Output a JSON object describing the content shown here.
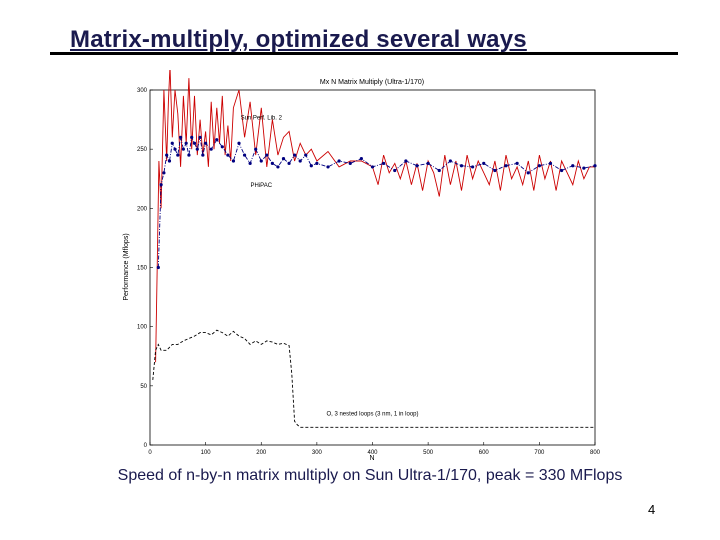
{
  "slide": {
    "title": "Matrix-multiply, optimized several ways",
    "caption": "Speed of n-by-n matrix multiply on Sun Ultra-1/170, peak = 330 MFlops",
    "page_number": "4"
  },
  "chart_data": {
    "type": "line",
    "title": "Mx N Matrix Multiply (Ultra-1/170)",
    "xlabel": "N",
    "ylabel": "Performance (Mflops)",
    "xlim": [
      0,
      800
    ],
    "ylim": [
      0,
      300
    ],
    "xticks": [
      "0",
      "100",
      "200",
      "300",
      "400",
      "500",
      "600",
      "700",
      "800"
    ],
    "yticks": [
      "0",
      "50",
      "100",
      "150",
      "200",
      "250",
      "300"
    ],
    "grid": false,
    "annotations": [
      {
        "text": "Sun Perf. Lib. 2",
        "x": 200,
        "y": 275
      },
      {
        "text": "PHiPAC",
        "x": 200,
        "y": 218
      },
      {
        "text": "O, 3 nested loops (3 nm, 1 in loop)",
        "x": 400,
        "y": 25
      }
    ],
    "series": [
      {
        "color": "#cc0000",
        "style": "solid",
        "x": [
          10,
          13,
          16,
          20,
          25,
          30,
          33,
          36,
          40,
          45,
          50,
          55,
          60,
          65,
          70,
          75,
          80,
          85,
          90,
          95,
          100,
          105,
          110,
          115,
          120,
          125,
          130,
          135,
          140,
          145,
          150,
          160,
          170,
          180,
          190,
          200,
          210,
          220,
          230,
          240,
          250,
          260,
          270,
          280,
          290,
          300,
          320,
          340,
          360,
          380,
          400,
          410,
          420,
          430,
          440,
          450,
          460,
          470,
          480,
          490,
          500,
          510,
          520,
          530,
          540,
          550,
          560,
          570,
          580,
          590,
          600,
          610,
          620,
          630,
          640,
          650,
          660,
          670,
          680,
          690,
          700,
          710,
          720,
          730,
          740,
          750,
          760,
          770,
          780,
          790,
          800
        ],
        "y": [
          70,
          150,
          240,
          200,
          300,
          240,
          290,
          320,
          260,
          300,
          280,
          235,
          295,
          255,
          310,
          250,
          295,
          245,
          275,
          245,
          265,
          235,
          290,
          250,
          285,
          255,
          295,
          245,
          270,
          240,
          285,
          300,
          260,
          290,
          245,
          285,
          235,
          275,
          245,
          260,
          265,
          240,
          255,
          245,
          250,
          240,
          248,
          235,
          240,
          240,
          235,
          220,
          245,
          230,
          238,
          225,
          240,
          220,
          238,
          215,
          240,
          230,
          210,
          245,
          220,
          240,
          215,
          245,
          225,
          240,
          230,
          220,
          240,
          215,
          245,
          225,
          235,
          220,
          240,
          215,
          245,
          225,
          240,
          215,
          240,
          230,
          220,
          240,
          225,
          235,
          235
        ]
      },
      {
        "color": "#000080",
        "style": "dashdot-marker",
        "x": [
          15,
          20,
          25,
          30,
          35,
          40,
          45,
          50,
          55,
          60,
          65,
          70,
          75,
          80,
          85,
          90,
          95,
          100,
          110,
          120,
          130,
          140,
          150,
          160,
          170,
          180,
          190,
          200,
          210,
          220,
          230,
          240,
          250,
          260,
          270,
          280,
          290,
          300,
          320,
          340,
          360,
          380,
          400,
          420,
          440,
          460,
          480,
          500,
          520,
          540,
          560,
          580,
          600,
          620,
          640,
          660,
          680,
          700,
          720,
          740,
          760,
          780,
          800
        ],
        "y": [
          150,
          220,
          230,
          245,
          240,
          255,
          250,
          245,
          260,
          250,
          255,
          245,
          260,
          255,
          250,
          260,
          245,
          255,
          250,
          258,
          252,
          245,
          240,
          255,
          245,
          238,
          250,
          240,
          245,
          238,
          235,
          242,
          238,
          245,
          240,
          245,
          236,
          238,
          235,
          240,
          238,
          242,
          235,
          238,
          232,
          240,
          236,
          238,
          232,
          240,
          236,
          235,
          238,
          232,
          236,
          238,
          230,
          236,
          238,
          232,
          236,
          234,
          236
        ]
      },
      {
        "color": "#000000",
        "style": "dashed",
        "x": [
          5,
          10,
          15,
          20,
          30,
          40,
          50,
          60,
          70,
          80,
          90,
          100,
          110,
          120,
          130,
          140,
          150,
          160,
          170,
          180,
          190,
          200,
          210,
          220,
          230,
          240,
          250,
          255,
          260,
          265,
          270,
          280,
          300,
          350,
          400,
          450,
          500,
          550,
          600,
          650,
          700,
          750,
          800
        ],
        "y": [
          55,
          80,
          85,
          80,
          80,
          85,
          85,
          88,
          90,
          92,
          95,
          95,
          93,
          97,
          95,
          92,
          96,
          92,
          90,
          85,
          88,
          85,
          88,
          87,
          85,
          86,
          84,
          60,
          20,
          17,
          15,
          15,
          15,
          15,
          15,
          15,
          15,
          15,
          15,
          15,
          15,
          15,
          15
        ]
      }
    ]
  }
}
